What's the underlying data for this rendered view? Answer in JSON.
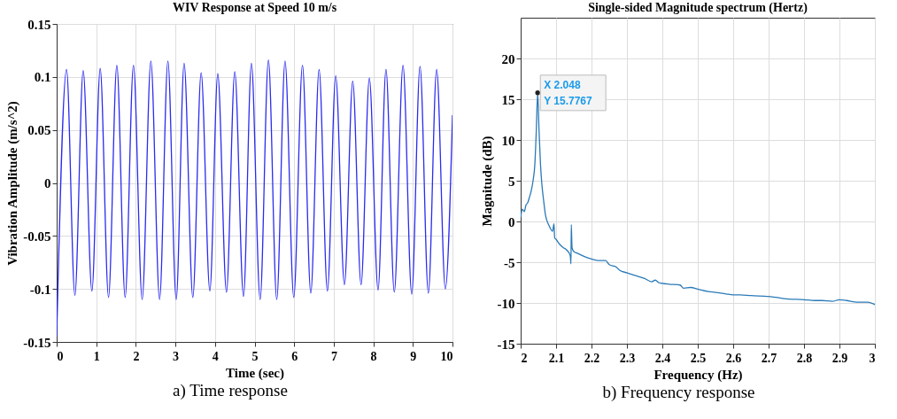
{
  "chart_data": [
    {
      "type": "line",
      "title": "WIV Response at Speed 10 m/s",
      "xlabel": "Time (sec)",
      "ylabel": "Vibration Amplitude (m/s^2)",
      "x": [
        0,
        0.25,
        0.46,
        0.67,
        0.89,
        1.1,
        1.31,
        1.52,
        1.73,
        1.94,
        2.16,
        2.38,
        2.6,
        2.81,
        3.02,
        3.22,
        3.44,
        3.65,
        3.87,
        4.07,
        4.29,
        4.5,
        4.72,
        4.92,
        5.14,
        5.35,
        5.56,
        5.77,
        5.99,
        6.21,
        6.42,
        6.63,
        6.84,
        7.05,
        7.27,
        7.48,
        7.69,
        7.9,
        8.12,
        8.32,
        8.53,
        8.75,
        8.97,
        9.18,
        9.39,
        9.6,
        9.82,
        10
      ],
      "series": [
        {
          "color": "#2b2bf0",
          "values": [
            -0.145,
            0.107,
            -0.106,
            0.106,
            -0.102,
            0.108,
            -0.108,
            0.111,
            -0.108,
            0.111,
            -0.11,
            0.115,
            -0.11,
            0.115,
            -0.11,
            0.113,
            -0.108,
            0.104,
            -0.102,
            0.103,
            -0.103,
            0.105,
            -0.107,
            0.113,
            -0.11,
            0.116,
            -0.11,
            0.115,
            -0.108,
            0.111,
            -0.104,
            0.107,
            -0.102,
            0.101,
            -0.096,
            0.096,
            -0.096,
            0.099,
            -0.101,
            0.107,
            -0.103,
            0.111,
            -0.105,
            0.11,
            -0.104,
            0.107,
            -0.1,
            0.064
          ]
        }
      ],
      "xlim": [
        0,
        10
      ],
      "xticks": [
        0,
        1,
        2,
        3,
        4,
        5,
        6,
        7,
        8,
        9,
        10
      ],
      "ylim": [
        -0.15,
        0.15
      ],
      "yticks": [
        -0.15,
        -0.1,
        -0.05,
        0,
        0.05,
        0.1,
        0.15
      ],
      "grid": true,
      "marker": "none",
      "line_style": "solid",
      "annotations": [
        "a) Time response"
      ]
    },
    {
      "type": "line",
      "title": "Single-sided Magnitude spectrum (Hertz)",
      "xlabel": "Frequency (Hz)",
      "ylabel": "Magnitude (dB)",
      "x": [
        2,
        2.005,
        2.01,
        2.015,
        2.02,
        2.025,
        2.03,
        2.035,
        2.04,
        2.044,
        2.048,
        2.052,
        2.056,
        2.06,
        2.065,
        2.07,
        2.08,
        2.09,
        2.094,
        2.096,
        2.1,
        2.11,
        2.12,
        2.13,
        2.14,
        2.142,
        2.143,
        2.145,
        2.15,
        2.16,
        2.18,
        2.2,
        2.22,
        2.24,
        2.25,
        2.27,
        2.28,
        2.3,
        2.32,
        2.35,
        2.37,
        2.38,
        2.39,
        2.4,
        2.42,
        2.45,
        2.46,
        2.48,
        2.5,
        2.53,
        2.55,
        2.58,
        2.6,
        2.62,
        2.65,
        2.7,
        2.72,
        2.75,
        2.8,
        2.83,
        2.85,
        2.88,
        2.9,
        2.92,
        2.95,
        2.98,
        3
      ],
      "series": [
        {
          "color": "#2a7ab8",
          "values": [
            0.5,
            1.5,
            1.2,
            2,
            2.3,
            3,
            3.8,
            5,
            7,
            11,
            15.7767,
            11,
            7,
            4.5,
            2.5,
            0.8,
            -0.5,
            -1.2,
            -0.3,
            -2,
            -2.2,
            -2.8,
            -3.2,
            -3.5,
            -4.2,
            -5.2,
            -0.4,
            -3.2,
            -3.7,
            -3.9,
            -4.3,
            -4.6,
            -4.8,
            -4.8,
            -5.3,
            -5.6,
            -6,
            -6.3,
            -6.6,
            -7,
            -7.4,
            -7.2,
            -7.5,
            -7.6,
            -7.7,
            -7.8,
            -8.2,
            -8.1,
            -8.3,
            -8.6,
            -8.7,
            -8.9,
            -9,
            -9,
            -9.1,
            -9.2,
            -9.3,
            -9.5,
            -9.6,
            -9.7,
            -9.7,
            -9.8,
            -9.6,
            -9.7,
            -9.9,
            -9.9,
            -10.2
          ]
        }
      ],
      "xlim": [
        2,
        3
      ],
      "xticks": [
        2,
        2.1,
        2.2,
        2.3,
        2.4,
        2.5,
        2.6,
        2.7,
        2.8,
        2.9,
        3
      ],
      "ylim": [
        -15,
        25
      ],
      "yticks": [
        -15,
        -10,
        -5,
        0,
        5,
        10,
        15,
        20
      ],
      "grid": true,
      "marker": "none",
      "line_style": "solid",
      "annotations": [
        {
          "text": "X 2.048",
          "x": 2.048,
          "y": 15.7767
        },
        {
          "text": "Y 15.7767",
          "x": 2.048,
          "y": 15.7767
        },
        "b) Frequency response"
      ]
    }
  ]
}
